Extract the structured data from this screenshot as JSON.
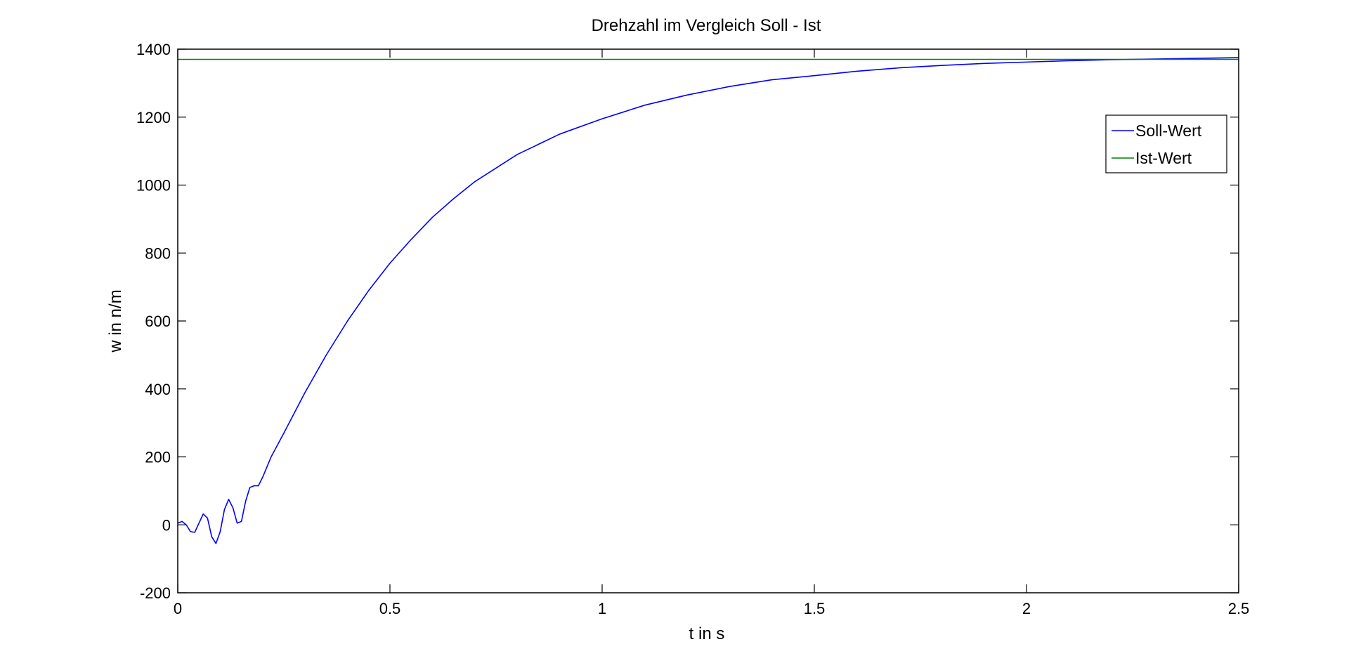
{
  "chart_data": {
    "type": "line",
    "title": "Drehzahl im Vergleich Soll - Ist",
    "xlabel": "t in s",
    "ylabel": "w in n/m",
    "xlim": [
      0,
      2.5
    ],
    "ylim": [
      -200,
      1400
    ],
    "x_ticks": [
      "0",
      "0.5",
      "1",
      "1.5",
      "2",
      "2.5"
    ],
    "y_ticks": [
      "-200",
      "0",
      "200",
      "400",
      "600",
      "800",
      "1000",
      "1200",
      "1400"
    ],
    "grid": false,
    "legend_position": "top-right",
    "series": [
      {
        "name": "Soll-Wert",
        "color": "#0000ff",
        "x": [
          0,
          0.01,
          0.02,
          0.03,
          0.04,
          0.05,
          0.06,
          0.07,
          0.08,
          0.09,
          0.1,
          0.11,
          0.12,
          0.13,
          0.14,
          0.15,
          0.16,
          0.17,
          0.18,
          0.19,
          0.2,
          0.22,
          0.25,
          0.3,
          0.35,
          0.4,
          0.45,
          0.5,
          0.55,
          0.6,
          0.65,
          0.7,
          0.8,
          0.9,
          1.0,
          1.1,
          1.2,
          1.3,
          1.4,
          1.5,
          1.6,
          1.7,
          1.8,
          1.9,
          2.0,
          2.1,
          2.2,
          2.3,
          2.4,
          2.5
        ],
        "y": [
          5,
          10,
          0,
          -20,
          -22,
          5,
          32,
          20,
          -35,
          -55,
          -20,
          45,
          75,
          50,
          5,
          10,
          70,
          110,
          115,
          115,
          140,
          200,
          270,
          390,
          500,
          600,
          690,
          770,
          840,
          905,
          960,
          1010,
          1090,
          1150,
          1195,
          1235,
          1265,
          1290,
          1310,
          1322,
          1335,
          1345,
          1352,
          1358,
          1362,
          1366,
          1369,
          1371,
          1373,
          1375
        ]
      },
      {
        "name": "Ist-Wert",
        "color": "#008000",
        "x": [
          0,
          2.5
        ],
        "y": [
          1370,
          1370
        ]
      }
    ]
  }
}
